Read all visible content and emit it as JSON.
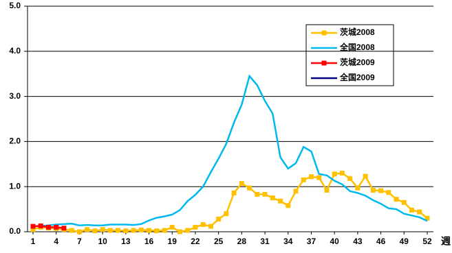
{
  "chart_data": {
    "type": "line",
    "x": [
      1,
      2,
      3,
      4,
      5,
      6,
      7,
      8,
      9,
      10,
      11,
      12,
      13,
      14,
      15,
      16,
      17,
      18,
      19,
      20,
      21,
      22,
      23,
      24,
      25,
      26,
      27,
      28,
      29,
      30,
      31,
      32,
      33,
      34,
      35,
      36,
      37,
      38,
      39,
      40,
      41,
      42,
      43,
      44,
      45,
      46,
      47,
      48,
      49,
      50,
      51,
      52
    ],
    "xlim": [
      1,
      52
    ],
    "xticks": [
      1,
      4,
      7,
      10,
      13,
      16,
      19,
      22,
      25,
      28,
      31,
      34,
      37,
      40,
      43,
      46,
      49,
      52
    ],
    "xlabel": "週",
    "ylim": [
      0,
      5
    ],
    "yticks": [
      {
        "value": 0,
        "label": "0.0"
      },
      {
        "value": 1,
        "label": "1.0"
      },
      {
        "value": 2,
        "label": "2.0"
      },
      {
        "value": 3,
        "label": "3.0"
      },
      {
        "value": 4,
        "label": "4.0"
      },
      {
        "value": 5,
        "label": "5.0"
      }
    ],
    "grid": true,
    "legend": "upper right",
    "series": [
      {
        "name": "茨城2008",
        "color": "#FFC000",
        "marker": "square",
        "values": [
          0.05,
          0.1,
          0.08,
          0.07,
          0.05,
          0.03,
          0.0,
          0.05,
          0.02,
          0.05,
          0.03,
          0.03,
          0.02,
          0.03,
          0.04,
          0.03,
          0.02,
          0.03,
          0.1,
          0.0,
          0.03,
          0.1,
          0.16,
          0.12,
          0.28,
          0.4,
          0.86,
          1.07,
          0.97,
          0.83,
          0.83,
          0.75,
          0.68,
          0.58,
          0.9,
          1.15,
          1.22,
          1.2,
          0.92,
          1.28,
          1.3,
          1.18,
          0.97,
          1.23,
          0.92,
          0.91,
          0.87,
          0.72,
          0.65,
          0.48,
          0.44,
          0.3
        ]
      },
      {
        "name": "全国2008",
        "color": "#00B8F0",
        "values": [
          0.12,
          0.13,
          0.14,
          0.16,
          0.17,
          0.18,
          0.14,
          0.15,
          0.14,
          0.14,
          0.16,
          0.16,
          0.16,
          0.15,
          0.17,
          0.25,
          0.31,
          0.34,
          0.38,
          0.48,
          0.68,
          0.82,
          1.0,
          1.32,
          1.62,
          1.95,
          2.42,
          2.82,
          3.45,
          3.25,
          2.9,
          2.62,
          1.65,
          1.4,
          1.52,
          1.88,
          1.78,
          1.28,
          1.25,
          1.13,
          1.05,
          0.9,
          0.86,
          0.8,
          0.7,
          0.62,
          0.52,
          0.5,
          0.4,
          0.36,
          0.32,
          0.24
        ]
      },
      {
        "name": "茨城2009",
        "color": "#FF0000",
        "marker": "square",
        "values": [
          0.12,
          0.13,
          0.1,
          0.1,
          0.08,
          null,
          null,
          null,
          null,
          null,
          null,
          null,
          null,
          null,
          null,
          null,
          null,
          null,
          null,
          null,
          null,
          null,
          null,
          null,
          null,
          null,
          null,
          null,
          null,
          null,
          null,
          null,
          null,
          null,
          null,
          null,
          null,
          null,
          null,
          null,
          null,
          null,
          null,
          null,
          null,
          null,
          null,
          null,
          null,
          null,
          null,
          null
        ]
      },
      {
        "name": "全国2009",
        "color": "#000080",
        "values": [
          null,
          null,
          null,
          null,
          null,
          null,
          null,
          null,
          null,
          null,
          null,
          null,
          null,
          null,
          null,
          null,
          null,
          null,
          null,
          null,
          null,
          null,
          null,
          null,
          null,
          null,
          null,
          null,
          null,
          null,
          null,
          null,
          null,
          null,
          null,
          null,
          null,
          null,
          null,
          null,
          null,
          null,
          null,
          null,
          null,
          null,
          null,
          null,
          null,
          null,
          null,
          null
        ]
      }
    ]
  }
}
